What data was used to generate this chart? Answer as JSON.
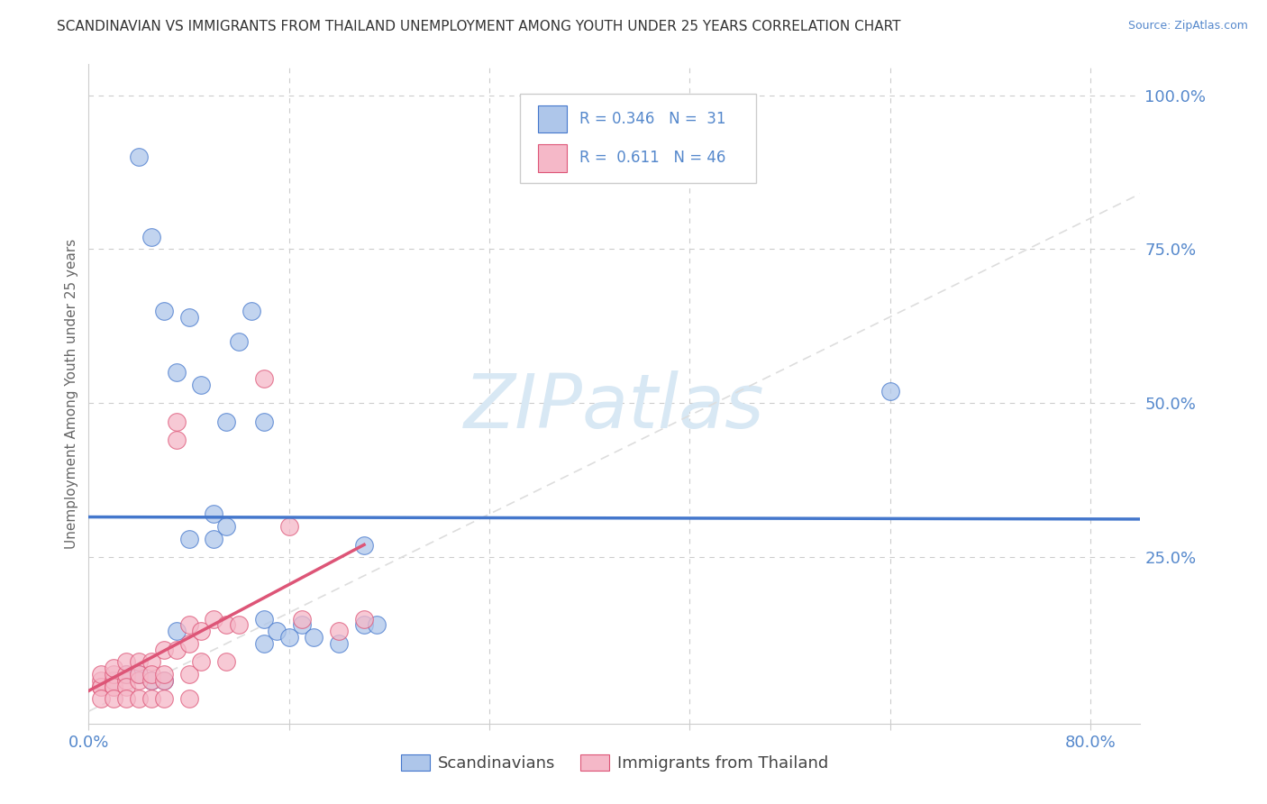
{
  "title": "SCANDINAVIAN VS IMMIGRANTS FROM THAILAND UNEMPLOYMENT AMONG YOUTH UNDER 25 YEARS CORRELATION CHART",
  "source": "Source: ZipAtlas.com",
  "ylabel": "Unemployment Among Youth under 25 years",
  "x_tick_labels": [
    "0.0%",
    "",
    "",
    "",
    "",
    "80.0%"
  ],
  "y_tick_labels_right": [
    "",
    "25.0%",
    "50.0%",
    "75.0%",
    "100.0%"
  ],
  "xlim": [
    0.0,
    0.84
  ],
  "ylim": [
    -0.02,
    1.05
  ],
  "background_color": "#ffffff",
  "grid_color": "#cccccc",
  "watermark": "ZIPatlas",
  "legend_blue_r": "0.346",
  "legend_blue_n": "31",
  "legend_pink_r": "0.611",
  "legend_pink_n": "46",
  "blue_scatter_x": [
    0.04,
    0.05,
    0.06,
    0.07,
    0.08,
    0.09,
    0.1,
    0.1,
    0.11,
    0.11,
    0.12,
    0.13,
    0.14,
    0.14,
    0.14,
    0.15,
    0.16,
    0.17,
    0.18,
    0.2,
    0.22,
    0.23,
    0.64,
    0.02,
    0.03,
    0.04,
    0.05,
    0.06,
    0.07,
    0.08,
    0.22
  ],
  "blue_scatter_y": [
    0.9,
    0.77,
    0.65,
    0.55,
    0.64,
    0.53,
    0.28,
    0.32,
    0.3,
    0.47,
    0.6,
    0.65,
    0.47,
    0.15,
    0.11,
    0.13,
    0.12,
    0.14,
    0.12,
    0.11,
    0.14,
    0.14,
    0.52,
    0.05,
    0.06,
    0.06,
    0.05,
    0.05,
    0.13,
    0.28,
    0.27
  ],
  "pink_scatter_x": [
    0.01,
    0.01,
    0.01,
    0.01,
    0.02,
    0.02,
    0.02,
    0.02,
    0.02,
    0.03,
    0.03,
    0.03,
    0.03,
    0.04,
    0.04,
    0.04,
    0.05,
    0.05,
    0.05,
    0.06,
    0.06,
    0.06,
    0.07,
    0.07,
    0.07,
    0.08,
    0.08,
    0.08,
    0.09,
    0.09,
    0.1,
    0.11,
    0.11,
    0.12,
    0.14,
    0.16,
    0.17,
    0.2,
    0.22,
    0.01,
    0.02,
    0.03,
    0.04,
    0.05,
    0.06,
    0.08
  ],
  "pink_scatter_y": [
    0.04,
    0.05,
    0.04,
    0.06,
    0.04,
    0.05,
    0.06,
    0.07,
    0.04,
    0.05,
    0.06,
    0.08,
    0.04,
    0.05,
    0.08,
    0.06,
    0.05,
    0.08,
    0.06,
    0.05,
    0.1,
    0.06,
    0.44,
    0.47,
    0.1,
    0.11,
    0.14,
    0.06,
    0.13,
    0.08,
    0.15,
    0.14,
    0.08,
    0.14,
    0.54,
    0.3,
    0.15,
    0.13,
    0.15,
    0.02,
    0.02,
    0.02,
    0.02,
    0.02,
    0.02,
    0.02
  ],
  "blue_color": "#aec6ea",
  "pink_color": "#f5b8c8",
  "blue_line_color": "#4477cc",
  "pink_line_color": "#dd5577",
  "ref_line_color": "#dddddd",
  "title_color": "#333333",
  "axis_label_color": "#5588cc",
  "watermark_color": "#d8e8f4"
}
